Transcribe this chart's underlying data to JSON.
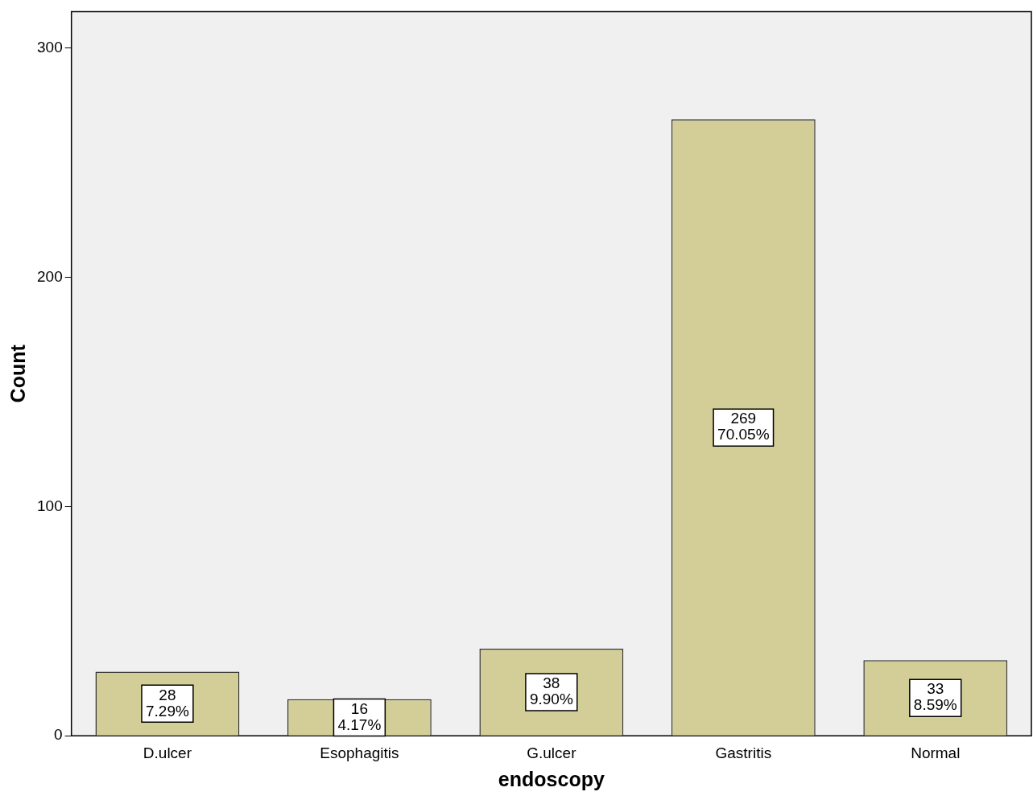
{
  "chart_data": {
    "type": "bar",
    "xlabel": "endoscopy",
    "ylabel": "Count",
    "categories": [
      "D.ulcer",
      "Esophagitis",
      "G.ulcer",
      "Gastritis",
      "Normal"
    ],
    "values": [
      28,
      16,
      38,
      269,
      33
    ],
    "value_labels": [
      "28\n7.29%",
      "16\n4.17%",
      "38\n9.90%",
      "269\n70.05%",
      "33\n8.59%"
    ],
    "color": "#d3ce97",
    "ylim": [
      0,
      316
    ],
    "yticks": [
      0,
      100,
      200,
      300
    ],
    "grid": false,
    "legend": false
  }
}
